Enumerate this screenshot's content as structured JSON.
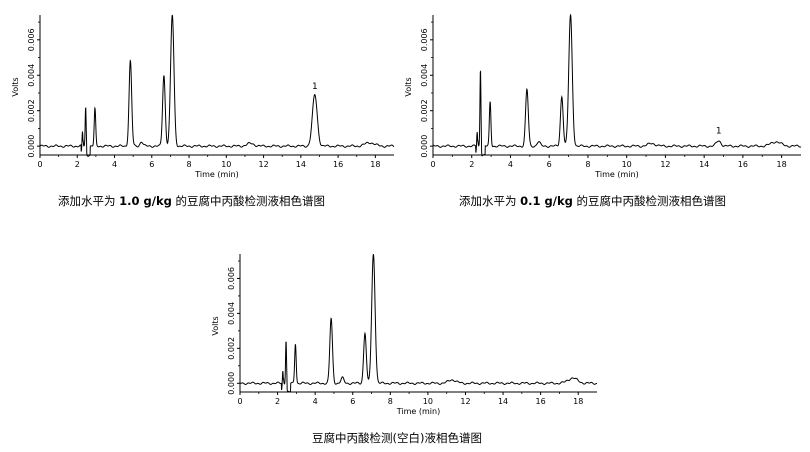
{
  "chart_data": [
    {
      "type": "line",
      "xlabel": "Time (min)",
      "ylabel": "Volts",
      "xlim": [
        0,
        19
      ],
      "ylim": [
        -0.0005,
        0.0074
      ],
      "x_ticks": [
        "0",
        "2",
        "4",
        "6",
        "8",
        "10",
        "12",
        "14",
        "16",
        "18"
      ],
      "y_ticks": [
        "0.000",
        "0.002",
        "0.004",
        "0.006"
      ],
      "peak_label": {
        "text": "1",
        "x": 14.75,
        "y": 0.0031
      },
      "caption_pre": "添加水平为 ",
      "caption_bold": "1.0 g/kg",
      "caption_post": " 的豆腐中丙酸检测液相色谱图",
      "baseline": 0.0,
      "peaks": [
        {
          "t": 2.28,
          "h": 0.0012,
          "w": 0.025
        },
        {
          "t": 2.45,
          "h": 0.0022,
          "w": 0.025
        },
        {
          "t": 2.95,
          "h": 0.0021,
          "w": 0.04
        },
        {
          "t": 4.85,
          "h": 0.0048,
          "w": 0.07
        },
        {
          "t": 5.45,
          "h": 0.00025,
          "w": 0.08
        },
        {
          "t": 6.65,
          "h": 0.004,
          "w": 0.07
        },
        {
          "t": 7.1,
          "h": 0.0074,
          "w": 0.09
        },
        {
          "t": 11.3,
          "h": 0.00015,
          "w": 0.2
        },
        {
          "t": 14.75,
          "h": 0.0029,
          "w": 0.13
        },
        {
          "t": 17.7,
          "h": 0.0002,
          "w": 0.25
        }
      ]
    },
    {
      "type": "line",
      "xlabel": "Time (min)",
      "ylabel": "Volts",
      "xlim": [
        0,
        19
      ],
      "ylim": [
        -0.0005,
        0.0074
      ],
      "x_ticks": [
        "0",
        "2",
        "4",
        "6",
        "8",
        "10",
        "12",
        "14",
        "16",
        "18"
      ],
      "y_ticks": [
        "0.000",
        "0.002",
        "0.004",
        "0.006"
      ],
      "peak_label": {
        "text": "1",
        "x": 14.75,
        "y": 0.0006
      },
      "caption_pre": "添加水平为 ",
      "caption_bold": "0.1 g/kg",
      "caption_post": " 的豆腐中丙酸检测液相色谱图",
      "baseline": 0.0,
      "peaks": [
        {
          "t": 2.28,
          "h": 0.0012,
          "w": 0.025
        },
        {
          "t": 2.45,
          "h": 0.0044,
          "w": 0.025
        },
        {
          "t": 2.95,
          "h": 0.0025,
          "w": 0.04
        },
        {
          "t": 4.85,
          "h": 0.0032,
          "w": 0.07
        },
        {
          "t": 5.45,
          "h": 0.00025,
          "w": 0.08
        },
        {
          "t": 6.65,
          "h": 0.0028,
          "w": 0.07
        },
        {
          "t": 7.1,
          "h": 0.0074,
          "w": 0.09
        },
        {
          "t": 11.3,
          "h": 0.00015,
          "w": 0.2
        },
        {
          "t": 14.75,
          "h": 0.0003,
          "w": 0.12
        },
        {
          "t": 17.7,
          "h": 0.00025,
          "w": 0.25
        }
      ]
    },
    {
      "type": "line",
      "xlabel": "Time (min)",
      "ylabel": "Volts",
      "xlim": [
        0,
        19
      ],
      "ylim": [
        -0.0005,
        0.0074
      ],
      "x_ticks": [
        "0",
        "2",
        "4",
        "6",
        "8",
        "10",
        "12",
        "14",
        "16",
        "18"
      ],
      "y_ticks": [
        "0.000",
        "0.002",
        "0.004",
        "0.006"
      ],
      "caption_pre": "",
      "caption_bold": "",
      "caption_post": "豆腐中丙酸检测(空白)液相色谱图",
      "baseline": 0.0,
      "peaks": [
        {
          "t": 2.28,
          "h": 0.0011,
          "w": 0.025
        },
        {
          "t": 2.45,
          "h": 0.0025,
          "w": 0.025
        },
        {
          "t": 2.95,
          "h": 0.0023,
          "w": 0.04
        },
        {
          "t": 4.85,
          "h": 0.0037,
          "w": 0.07
        },
        {
          "t": 5.45,
          "h": 0.0003,
          "w": 0.08
        },
        {
          "t": 6.65,
          "h": 0.0029,
          "w": 0.07
        },
        {
          "t": 7.1,
          "h": 0.0074,
          "w": 0.09
        },
        {
          "t": 11.3,
          "h": 0.0002,
          "w": 0.2
        },
        {
          "t": 17.7,
          "h": 0.0003,
          "w": 0.25
        }
      ]
    }
  ]
}
